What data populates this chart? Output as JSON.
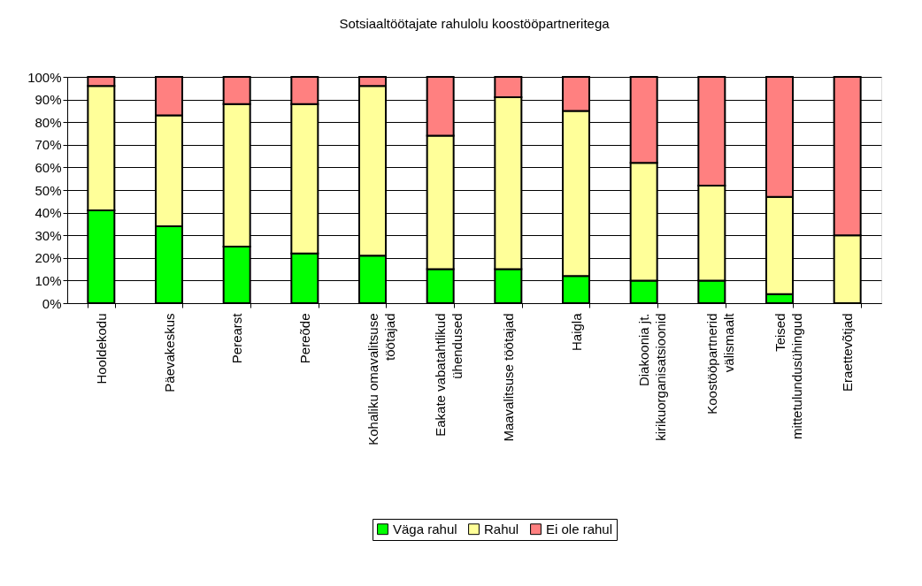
{
  "chart_data": {
    "type": "bar",
    "title": "Sotsiaaltöötajate rahulolu koostööpartneritega",
    "categories": [
      "Hooldekodu",
      "Päevakeskus",
      "Perearst",
      "Pereõde",
      "Kohaliku omavalitsuse\ntöötajad",
      "Eakate vabatahtlikud\nühendused",
      "Maavalitsuse töötajad",
      "Haigla",
      "Diakoonia jt.\nkirikuorganisatsioonid",
      "Koostööpartnerid\nvälismaalt",
      "Teised\nmittetulundusühingud",
      "Eraettevõtjad"
    ],
    "series": [
      {
        "name": "Väga rahul",
        "color": "#00ff00",
        "values": [
          41,
          34,
          25,
          22,
          21,
          15,
          15,
          12,
          10,
          10,
          4,
          0
        ]
      },
      {
        "name": "Rahul",
        "color": "#ffff99",
        "values": [
          55,
          49,
          63,
          66,
          75,
          59,
          76,
          73,
          52,
          42,
          43,
          30
        ]
      },
      {
        "name": "Ei ole rahul",
        "color": "#ff8080",
        "values": [
          4,
          17,
          12,
          12,
          4,
          26,
          9,
          15,
          38,
          48,
          53,
          70
        ]
      }
    ],
    "stacked": true,
    "ylim": [
      0,
      100
    ],
    "yticks": [
      {
        "value": 0,
        "label": "0%"
      },
      {
        "value": 10,
        "label": "10%"
      },
      {
        "value": 20,
        "label": "20%"
      },
      {
        "value": 30,
        "label": "30%"
      },
      {
        "value": 40,
        "label": "40%"
      },
      {
        "value": 50,
        "label": "50%"
      },
      {
        "value": 60,
        "label": "60%"
      },
      {
        "value": 70,
        "label": "70%"
      },
      {
        "value": 80,
        "label": "80%"
      },
      {
        "value": 90,
        "label": "90%"
      },
      {
        "value": 100,
        "label": "100%"
      }
    ],
    "grid": "y",
    "legend": "bottom"
  }
}
